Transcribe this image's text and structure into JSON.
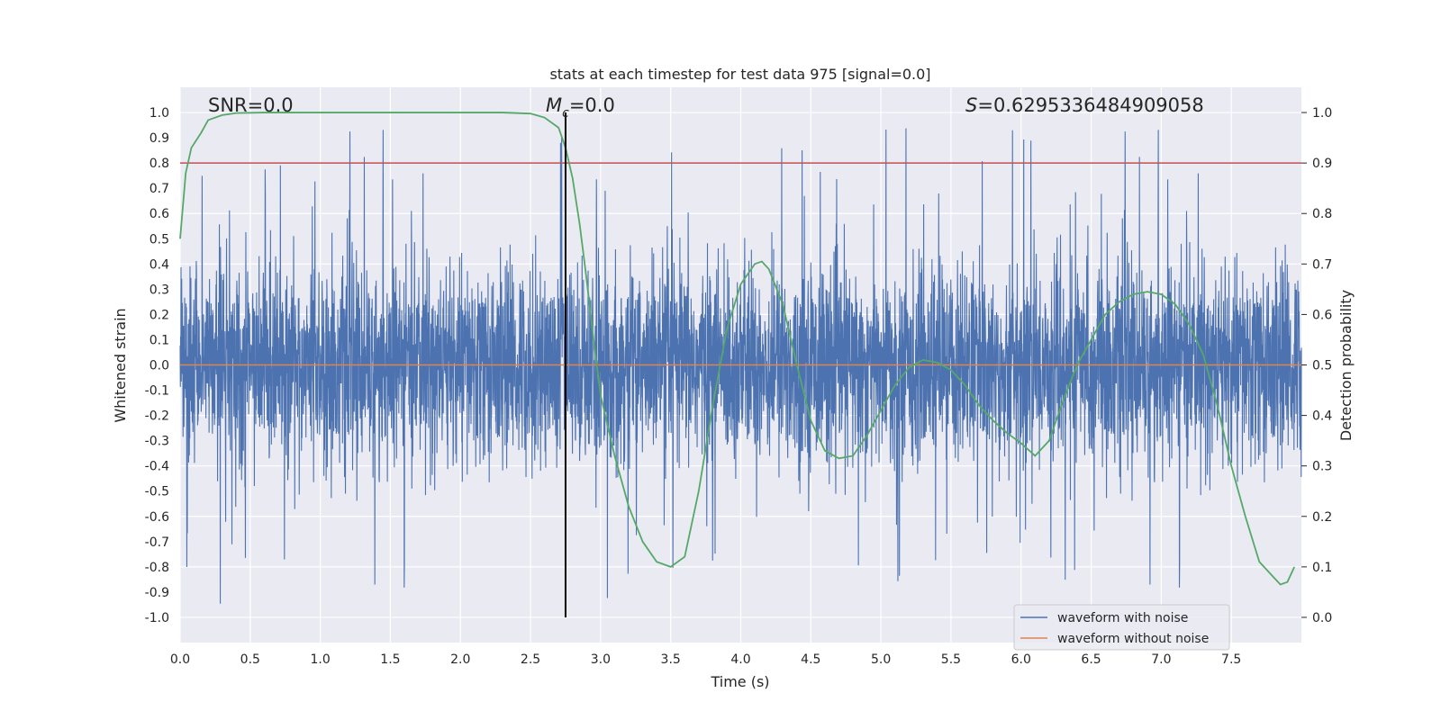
{
  "chart_data": {
    "type": "line",
    "title": "stats at each timestep for test data 975 [signal=0.0]",
    "xlabel": "Time (s)",
    "ylabel": "Whitened strain",
    "ylabel_right": "Detection probability",
    "xlim": [
      0.0,
      8.0
    ],
    "ylim": [
      -1.1,
      1.1
    ],
    "ylim_right": [
      -0.05,
      1.05
    ],
    "x_ticks": [
      "0.0",
      "0.5",
      "1.0",
      "1.5",
      "2.0",
      "2.5",
      "3.0",
      "3.5",
      "4.0",
      "4.5",
      "5.0",
      "5.5",
      "6.0",
      "6.5",
      "7.0",
      "7.5"
    ],
    "y_ticks": [
      "-1.0",
      "-0.9",
      "-0.8",
      "-0.7",
      "-0.6",
      "-0.5",
      "-0.4",
      "-0.3",
      "-0.2",
      "-0.1",
      "0.0",
      "0.1",
      "0.2",
      "0.3",
      "0.4",
      "0.5",
      "0.6",
      "0.7",
      "0.8",
      "0.9",
      "1.0"
    ],
    "y_ticks_right": [
      "0.0",
      "0.1",
      "0.2",
      "0.3",
      "0.4",
      "0.5",
      "0.6",
      "0.7",
      "0.8",
      "0.9",
      "1.0"
    ],
    "annotations": {
      "snr": "SNR=0.0",
      "mc_symbol": "M",
      "mc_sub": "c",
      "mc_value": "=0.0",
      "s_symbol": "S",
      "s_value": "=0.6295336484909058"
    },
    "threshold_right": 0.9,
    "marker_time": 2.75,
    "legend": {
      "placement": "lower-right",
      "entries": [
        {
          "label": "waveform with noise",
          "color": "#4c72b0"
        },
        {
          "label": "waveform without noise",
          "color": "#dd8452"
        }
      ]
    },
    "grid": true,
    "colors": {
      "noise": "#4c72b0",
      "clean": "#dd8452",
      "probability": "#55a868",
      "threshold": "#c44e52",
      "marker": "#000000",
      "background": "#eaeaf2"
    },
    "series": [
      {
        "name": "waveform with noise",
        "summary": {
          "typical_amplitude": 0.35,
          "peak_max": 1.0,
          "peak_min": -0.96
        }
      },
      {
        "name": "waveform without noise",
        "values_constant": 0.0
      },
      {
        "x": [
          0.0,
          0.04,
          0.08,
          0.15,
          0.2,
          0.3,
          0.4,
          0.6,
          1.0,
          1.5,
          2.0,
          2.3,
          2.5,
          2.6,
          2.7,
          2.75,
          2.8,
          2.85,
          2.9,
          2.95,
          3.0,
          3.1,
          3.2,
          3.3,
          3.4,
          3.5,
          3.6,
          3.7,
          3.8,
          3.9,
          4.0,
          4.1,
          4.15,
          4.2,
          4.3,
          4.4,
          4.5,
          4.6,
          4.7,
          4.8,
          4.9,
          5.0,
          5.1,
          5.2,
          5.3,
          5.4,
          5.5,
          5.6,
          5.7,
          5.8,
          5.9,
          6.0,
          6.1,
          6.2,
          6.3,
          6.4,
          6.5,
          6.6,
          6.7,
          6.8,
          6.9,
          7.0,
          7.1,
          7.2,
          7.3,
          7.4,
          7.5,
          7.6,
          7.7,
          7.8,
          7.85,
          7.9,
          7.95
        ],
        "y": [
          0.75,
          0.88,
          0.93,
          0.96,
          0.985,
          0.995,
          0.999,
          1.0,
          1.0,
          1.0,
          1.0,
          1.0,
          0.998,
          0.99,
          0.97,
          0.93,
          0.87,
          0.78,
          0.67,
          0.55,
          0.44,
          0.32,
          0.22,
          0.15,
          0.11,
          0.1,
          0.12,
          0.25,
          0.42,
          0.57,
          0.66,
          0.7,
          0.705,
          0.69,
          0.62,
          0.5,
          0.39,
          0.33,
          0.315,
          0.32,
          0.36,
          0.41,
          0.46,
          0.495,
          0.51,
          0.505,
          0.49,
          0.46,
          0.42,
          0.39,
          0.365,
          0.345,
          0.32,
          0.35,
          0.43,
          0.5,
          0.55,
          0.6,
          0.625,
          0.64,
          0.645,
          0.64,
          0.62,
          0.58,
          0.52,
          0.42,
          0.3,
          0.2,
          0.11,
          0.08,
          0.065,
          0.07,
          0.1
        ]
      }
    ]
  }
}
